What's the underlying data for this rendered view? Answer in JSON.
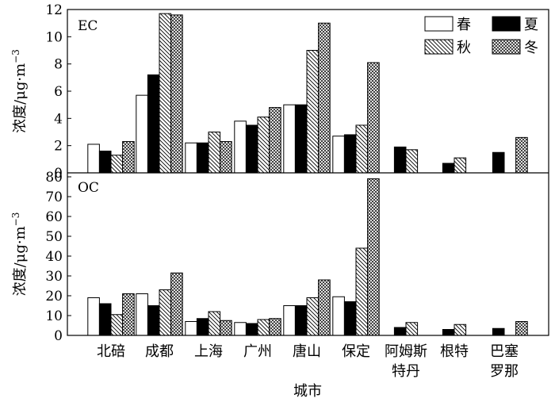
{
  "chart_data": [
    {
      "type": "bar",
      "panel_label": "EC",
      "ylabel": "浓度/μg·m⁻³",
      "ylim": [
        0,
        12
      ],
      "yticks": [
        0,
        2,
        4,
        6,
        8,
        10,
        12
      ],
      "categories": [
        "北碚",
        "成都",
        "上海",
        "广州",
        "唐山",
        "保定",
        "阿姆斯特丹",
        "根特",
        "巴塞罗那"
      ],
      "series": [
        {
          "name": "春",
          "values": [
            2.1,
            5.7,
            2.2,
            3.8,
            5.0,
            2.7,
            null,
            null,
            null
          ]
        },
        {
          "name": "夏",
          "values": [
            1.6,
            7.2,
            2.2,
            3.5,
            5.0,
            2.8,
            1.9,
            0.7,
            1.5
          ]
        },
        {
          "name": "秋",
          "values": [
            1.3,
            11.7,
            3.0,
            4.1,
            9.0,
            3.5,
            1.7,
            1.1,
            null
          ]
        },
        {
          "name": "冬",
          "values": [
            2.3,
            11.6,
            2.3,
            4.8,
            11.0,
            8.1,
            null,
            null,
            2.6
          ]
        }
      ],
      "legend": "top-right"
    },
    {
      "type": "bar",
      "panel_label": "OC",
      "ylabel": "浓度/μg·m⁻³",
      "ylim": [
        0,
        82
      ],
      "yticks": [
        0,
        10,
        20,
        30,
        40,
        50,
        60,
        70,
        80
      ],
      "categories": [
        "北碚",
        "成都",
        "上海",
        "广州",
        "唐山",
        "保定",
        "阿姆斯特丹",
        "根特",
        "巴塞罗那"
      ],
      "series": [
        {
          "name": "春",
          "values": [
            19,
            21,
            7,
            6.5,
            15,
            19.5,
            null,
            null,
            null
          ]
        },
        {
          "name": "夏",
          "values": [
            16,
            15,
            8.5,
            6,
            15,
            17,
            4,
            3,
            3.5
          ]
        },
        {
          "name": "秋",
          "values": [
            10.5,
            23,
            12,
            8,
            19,
            44,
            6.5,
            5.5,
            null
          ]
        },
        {
          "name": "冬",
          "values": [
            21,
            31.5,
            7.5,
            8.5,
            28,
            79,
            null,
            null,
            7
          ]
        }
      ],
      "xlabel": "城市"
    }
  ],
  "display": {
    "ylabel_main": "浓度/μg·m",
    "ylabel_exp": "−3",
    "tick_labels": [
      [
        "北碚"
      ],
      [
        "成都"
      ],
      [
        "上海"
      ],
      [
        "广州"
      ],
      [
        "唐山"
      ],
      [
        "保定"
      ],
      [
        "阿姆斯",
        "特丹"
      ],
      [
        "根特"
      ],
      [
        "巴塞",
        "罗那"
      ]
    ]
  },
  "colors": {
    "spring": "#ffffff",
    "summer": "#000000",
    "stroke": "#000000",
    "background": "#ffffff"
  }
}
